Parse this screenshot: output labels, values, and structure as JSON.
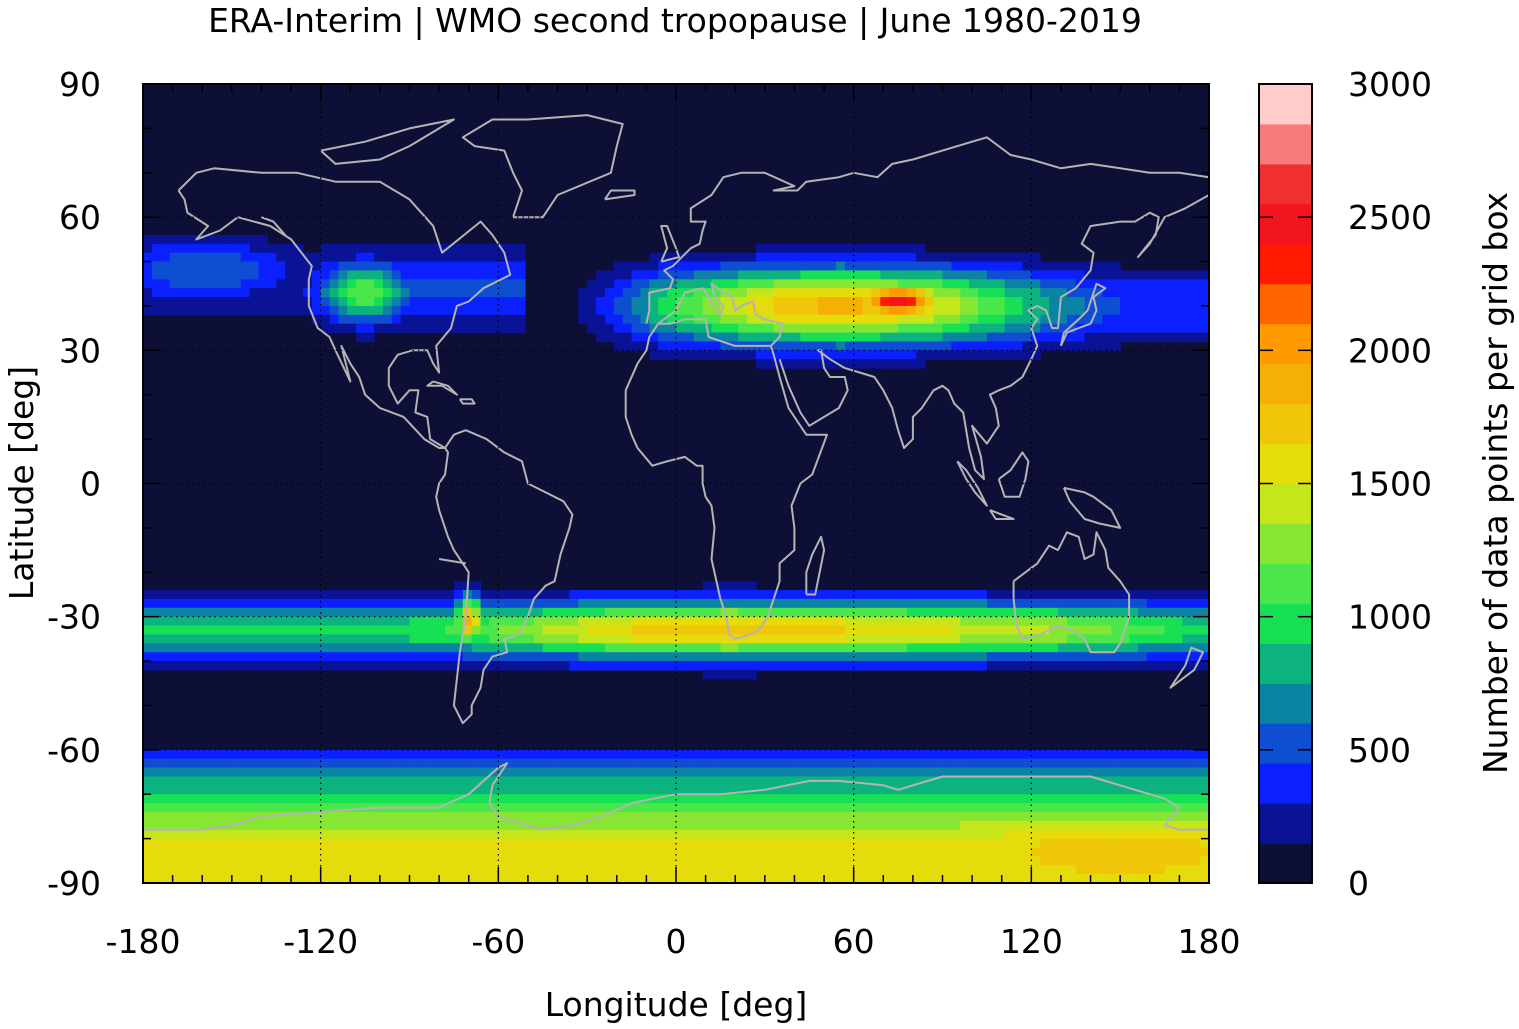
{
  "chart_data": {
    "type": "heatmap",
    "title": "ERA-Interim | WMO second tropopause | June 1980-2019",
    "xlabel": "Longitude [deg]",
    "ylabel": "Latitude [deg]",
    "xlim": [
      -180,
      180
    ],
    "ylim": [
      -90,
      90
    ],
    "xticks": [
      "-180",
      "-120",
      "-60",
      "0",
      "60",
      "120",
      "180"
    ],
    "yticks": [
      "90",
      "60",
      "30",
      "0",
      "-30",
      "-60",
      "-90"
    ],
    "grid": true,
    "colorbar": {
      "label": "Number of data points per grid box",
      "range": [
        0,
        3000
      ],
      "ticks": [
        "0",
        "500",
        "1000",
        "1500",
        "2000",
        "2500",
        "3000"
      ],
      "levels": [
        {
          "from": 0,
          "to": 150,
          "color": "#0e0f36"
        },
        {
          "from": 150,
          "to": 300,
          "color": "#0a1296"
        },
        {
          "from": 300,
          "to": 450,
          "color": "#0b20ff"
        },
        {
          "from": 450,
          "to": 600,
          "color": "#0d4ed2"
        },
        {
          "from": 600,
          "to": 750,
          "color": "#0b84a4"
        },
        {
          "from": 750,
          "to": 900,
          "color": "#0db37e"
        },
        {
          "from": 900,
          "to": 1050,
          "color": "#18e055"
        },
        {
          "from": 1050,
          "to": 1200,
          "color": "#4be64a"
        },
        {
          "from": 1200,
          "to": 1350,
          "color": "#86e632"
        },
        {
          "from": 1350,
          "to": 1500,
          "color": "#c6e61c"
        },
        {
          "from": 1500,
          "to": 1650,
          "color": "#e6dc0c"
        },
        {
          "from": 1650,
          "to": 1800,
          "color": "#f0c60a"
        },
        {
          "from": 1800,
          "to": 1950,
          "color": "#f5b005"
        },
        {
          "from": 1950,
          "to": 2100,
          "color": "#ff9a00"
        },
        {
          "from": 2100,
          "to": 2250,
          "color": "#ff6400"
        },
        {
          "from": 2250,
          "to": 2400,
          "color": "#ff1a00"
        },
        {
          "from": 2400,
          "to": 2550,
          "color": "#f21520"
        },
        {
          "from": 2550,
          "to": 2700,
          "color": "#f03030"
        },
        {
          "from": 2700,
          "to": 2850,
          "color": "#f57a7a"
        },
        {
          "from": 2850,
          "to": 3000,
          "color": "#ffcccc"
        }
      ]
    },
    "features": [
      {
        "name": "NH Pacific/N. America band",
        "lon": [
          -180,
          -55
        ],
        "lat": [
          30,
          55
        ],
        "peak_value": 1150,
        "peak_lon": -105,
        "peak_lat": 43
      },
      {
        "name": "NH Eurasia jet band",
        "lon": [
          -40,
          180
        ],
        "lat": [
          28,
          52
        ],
        "peak_value": 2500,
        "peak_lon": 75,
        "peak_lat": 41
      },
      {
        "name": "SH subtropical band",
        "lon": [
          -180,
          180
        ],
        "lat": [
          -43,
          -25
        ],
        "peak_value": 1900,
        "peak_lon": 30,
        "peak_lat": -32
      },
      {
        "name": "Andes local maximum",
        "lon": [
          -75,
          -60
        ],
        "lat": [
          -40,
          -25
        ],
        "peak_value": 1950,
        "peak_lon": -70,
        "peak_lat": -31
      },
      {
        "name": "Antarctic band",
        "lon": [
          -180,
          180
        ],
        "lat": [
          -90,
          -62
        ],
        "peak_value": 1800,
        "peak_lon": 150,
        "peak_lat": -83
      }
    ]
  }
}
